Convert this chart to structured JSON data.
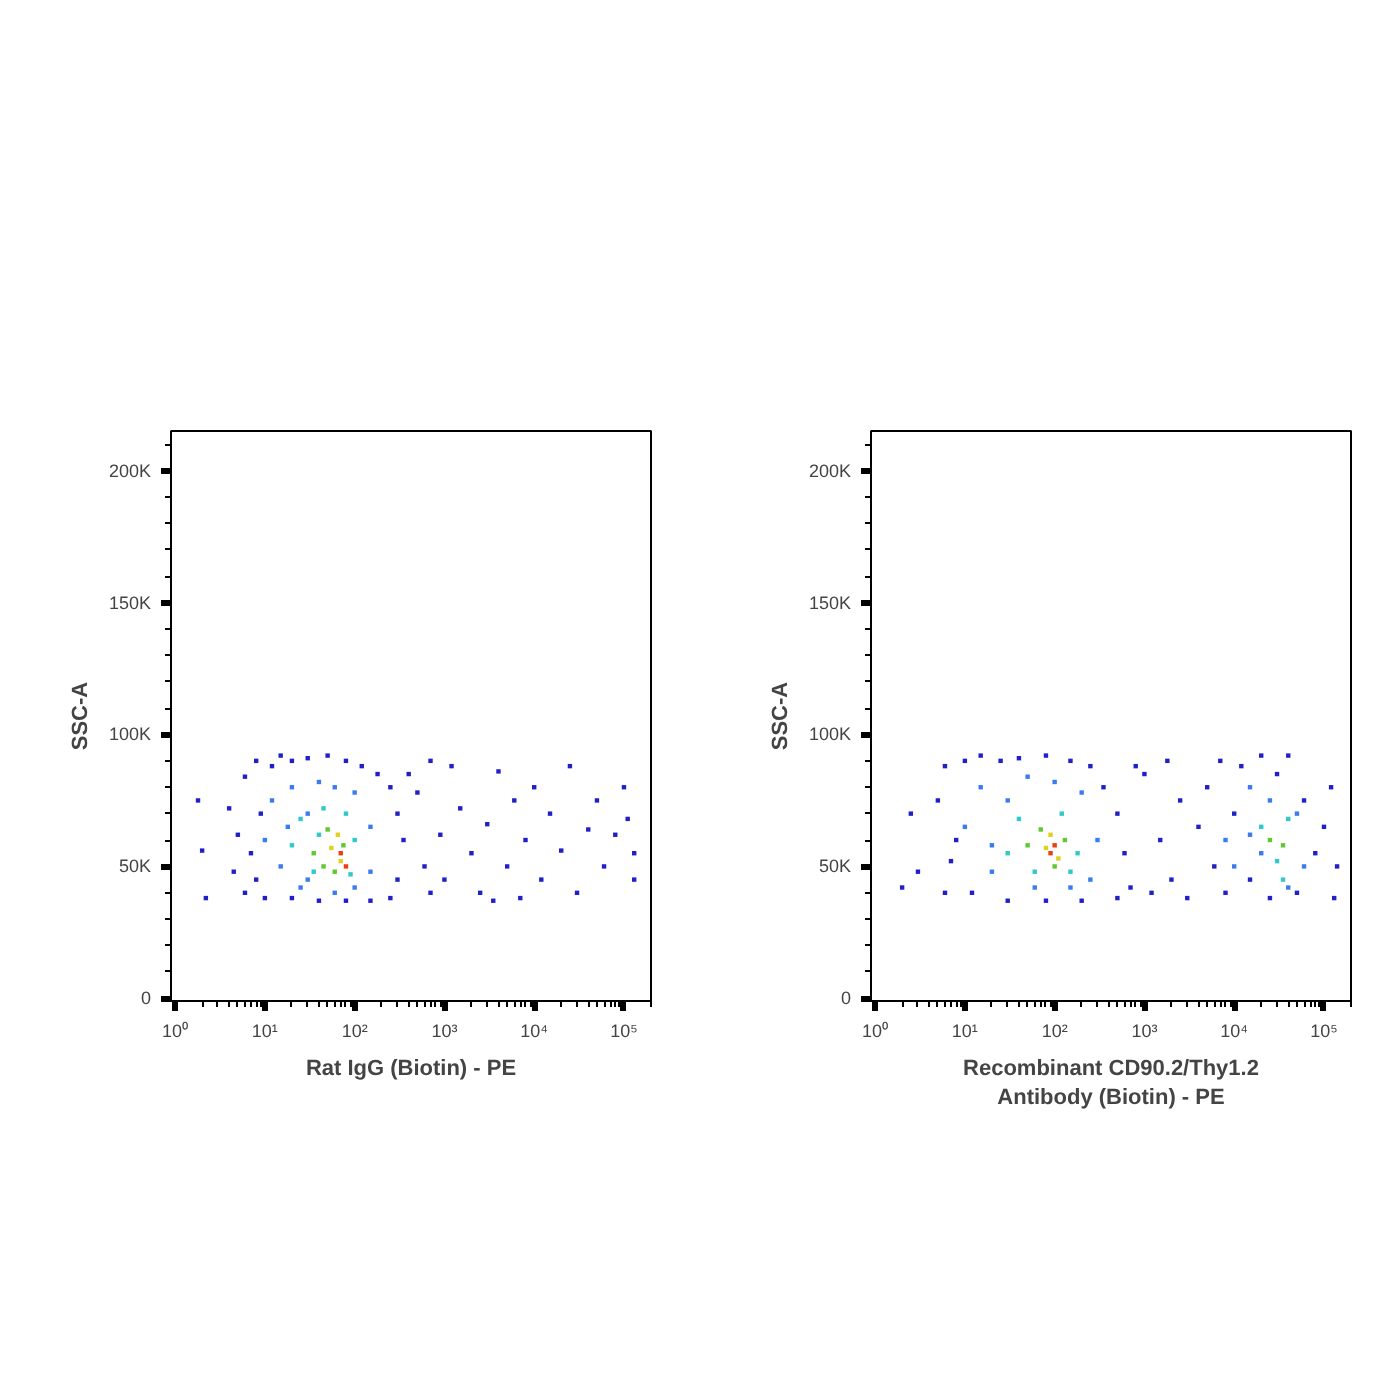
{
  "chart_data": [
    {
      "type": "scatter",
      "xlabel": "Rat IgG (Biotin) - PE",
      "ylabel": "SSC-A",
      "log": "x",
      "marker": "square",
      "grid": false,
      "xlim": [
        0.9,
        200000
      ],
      "xticks": [
        {
          "value": 1,
          "label": "10⁰"
        },
        {
          "value": 10,
          "label": "10¹"
        },
        {
          "value": 100,
          "label": "10²"
        },
        {
          "value": 1000,
          "label": "10³"
        },
        {
          "value": 10000,
          "label": "10⁴"
        },
        {
          "value": 100000,
          "label": "10⁵"
        }
      ],
      "ylim": [
        -1000,
        215000
      ],
      "yticks": [
        0,
        {
          "value": 50000,
          "label": "50K"
        },
        {
          "value": 100000,
          "label": "100K"
        },
        {
          "value": 150000,
          "label": "150K"
        },
        {
          "value": 200000,
          "label": "200K"
        }
      ],
      "series": [
        {
          "color": "#2020c8",
          "x": [
            2,
            1.8,
            2.2,
            4,
            4.5,
            5,
            6,
            6,
            7,
            8,
            9,
            10,
            12,
            15,
            20,
            30,
            50,
            80,
            120,
            180,
            250,
            300,
            350,
            300,
            250,
            150,
            80,
            40,
            20,
            8,
            400,
            500,
            600,
            700,
            900,
            1200,
            1500,
            2000,
            2500,
            3000,
            4000,
            5000,
            6000,
            7000,
            8000,
            10000,
            12000,
            15000,
            20000,
            25000,
            30000,
            40000,
            50000,
            60000,
            80000,
            100000,
            130000,
            130000,
            110000,
            700,
            1000,
            3500
          ],
          "values": [
            56000,
            75000,
            38000,
            72000,
            48000,
            62000,
            84000,
            40000,
            55000,
            90000,
            70000,
            38000,
            88000,
            92000,
            90000,
            91000,
            92000,
            90000,
            88000,
            85000,
            80000,
            70000,
            60000,
            45000,
            38000,
            37000,
            37000,
            37000,
            38000,
            45000,
            85000,
            78000,
            50000,
            40000,
            62000,
            88000,
            72000,
            55000,
            40000,
            66000,
            86000,
            50000,
            75000,
            38000,
            60000,
            80000,
            45000,
            70000,
            56000,
            88000,
            40000,
            64000,
            75000,
            50000,
            62000,
            80000,
            55000,
            45000,
            68000,
            90000,
            45000,
            37000
          ]
        },
        {
          "color": "#3a7cf0",
          "x": [
            10,
            12,
            15,
            20,
            25,
            30,
            40,
            60,
            100,
            150,
            150,
            100,
            60,
            30,
            18
          ],
          "values": [
            60000,
            75000,
            50000,
            80000,
            42000,
            70000,
            82000,
            80000,
            78000,
            65000,
            48000,
            42000,
            40000,
            45000,
            65000
          ]
        },
        {
          "color": "#30c8c8",
          "x": [
            20,
            25,
            35,
            45,
            80,
            100,
            90,
            40
          ],
          "values": [
            58000,
            68000,
            48000,
            72000,
            70000,
            60000,
            47000,
            62000
          ]
        },
        {
          "color": "#60c830",
          "x": [
            35,
            50,
            60,
            75,
            45
          ],
          "values": [
            55000,
            64000,
            48000,
            58000,
            50000
          ]
        },
        {
          "color": "#e0d020",
          "x": [
            55,
            70,
            65
          ],
          "values": [
            57000,
            52000,
            62000
          ]
        },
        {
          "color": "#e84010",
          "x": [
            70,
            80
          ],
          "values": [
            55000,
            50000
          ]
        }
      ]
    },
    {
      "type": "scatter",
      "xlabel": "Recombinant CD90.2/Thy1.2 Antibody (Biotin) - PE",
      "ylabel": "SSC-A",
      "log": "x",
      "marker": "square",
      "grid": false,
      "xlim": [
        0.9,
        200000
      ],
      "xticks": [
        {
          "value": 1,
          "label": "10⁰"
        },
        {
          "value": 10,
          "label": "10¹"
        },
        {
          "value": 100,
          "label": "10²"
        },
        {
          "value": 1000,
          "label": "10³"
        },
        {
          "value": 10000,
          "label": "10⁴"
        },
        {
          "value": 100000,
          "label": "10⁵"
        }
      ],
      "ylim": [
        -1000,
        215000
      ],
      "yticks": [
        0,
        {
          "value": 50000,
          "label": "50K"
        },
        {
          "value": 100000,
          "label": "100K"
        },
        {
          "value": 150000,
          "label": "150K"
        },
        {
          "value": 200000,
          "label": "200K"
        }
      ],
      "series": [
        {
          "color": "#2020c8",
          "x": [
            2,
            2.5,
            3,
            5,
            6,
            6,
            8,
            10,
            15,
            25,
            40,
            80,
            150,
            250,
            350,
            500,
            600,
            700,
            500,
            200,
            80,
            30,
            12,
            7,
            1000,
            1500,
            2000,
            2500,
            3000,
            4000,
            5000,
            6000,
            7000,
            8000,
            10000,
            12000,
            15000,
            20000,
            25000,
            30000,
            40000,
            50000,
            60000,
            80000,
            100000,
            120000,
            140000,
            130000,
            1200,
            800,
            1800
          ],
          "values": [
            42000,
            70000,
            48000,
            75000,
            88000,
            40000,
            60000,
            90000,
            92000,
            90000,
            91000,
            92000,
            90000,
            88000,
            80000,
            70000,
            55000,
            42000,
            38000,
            37000,
            37000,
            37000,
            40000,
            52000,
            85000,
            60000,
            45000,
            75000,
            38000,
            65000,
            80000,
            50000,
            90000,
            40000,
            70000,
            88000,
            45000,
            92000,
            38000,
            85000,
            92000,
            40000,
            75000,
            55000,
            65000,
            80000,
            50000,
            38000,
            40000,
            88000,
            90000
          ]
        },
        {
          "color": "#3a7cf0",
          "x": [
            10,
            15,
            20,
            30,
            50,
            100,
            200,
            300,
            250,
            150,
            60,
            20,
            8000,
            10000,
            15000,
            20000,
            25000,
            50000,
            60000,
            40000,
            15000
          ],
          "values": [
            65000,
            80000,
            48000,
            75000,
            84000,
            82000,
            78000,
            60000,
            45000,
            42000,
            42000,
            58000,
            60000,
            50000,
            80000,
            55000,
            75000,
            70000,
            50000,
            42000,
            62000
          ]
        },
        {
          "color": "#30c8c8",
          "x": [
            30,
            40,
            60,
            120,
            180,
            150,
            20000,
            30000,
            40000,
            35000
          ],
          "values": [
            55000,
            68000,
            48000,
            70000,
            55000,
            48000,
            65000,
            52000,
            68000,
            45000
          ]
        },
        {
          "color": "#60c830",
          "x": [
            50,
            70,
            100,
            130,
            25000,
            35000
          ],
          "values": [
            58000,
            64000,
            50000,
            60000,
            60000,
            58000
          ]
        },
        {
          "color": "#e0d020",
          "x": [
            80,
            110,
            90
          ],
          "values": [
            57000,
            53000,
            62000
          ]
        },
        {
          "color": "#e84010",
          "x": [
            90,
            100
          ],
          "values": [
            55000,
            58000
          ]
        }
      ]
    }
  ]
}
